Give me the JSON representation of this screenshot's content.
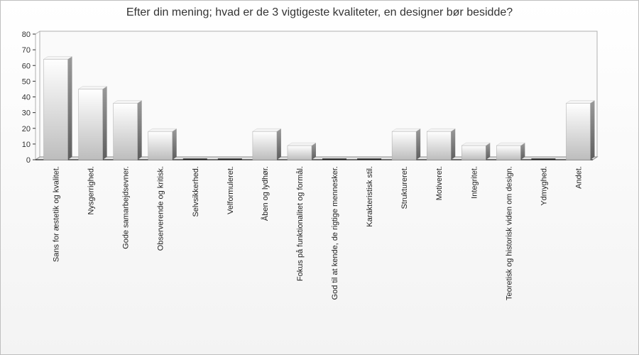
{
  "chart_data": {
    "type": "bar",
    "title": "Efter din mening; hvad er de 3 vigtigeste kvaliteter, en designer bør besidde?",
    "xlabel": "",
    "ylabel": "",
    "ylim": [
      0,
      80
    ],
    "yticks": [
      0,
      10,
      20,
      30,
      40,
      50,
      60,
      70,
      80
    ],
    "grid": false,
    "legend": "none",
    "categories": [
      "Sans for æstetik og kvalitet.",
      "Nysgerrighed.",
      "Gode samarbejdsevner.",
      "Observerende og kritisk.",
      "Selvsikkerhed.",
      "Velformuleret.",
      "Åben og lydhør.",
      "Fokus på funktionalitet og formål.",
      "God til at kende, de rigtige mennesker.",
      "Karakteristisk stil.",
      "Struktureret.",
      "Motiveret.",
      "Integritet.",
      "Teoretisk og historisk viden om design.",
      "Ydmyghed.",
      "Andet."
    ],
    "values": [
      64,
      45,
      36,
      18,
      0,
      0,
      18,
      9,
      0,
      0,
      18,
      18,
      9,
      9,
      0,
      36
    ],
    "colors": {
      "bar_light": "#ffffff",
      "bar_dark": "#bdbdbd",
      "axis": "#333333",
      "plot_border": "#b0b0b0"
    }
  }
}
